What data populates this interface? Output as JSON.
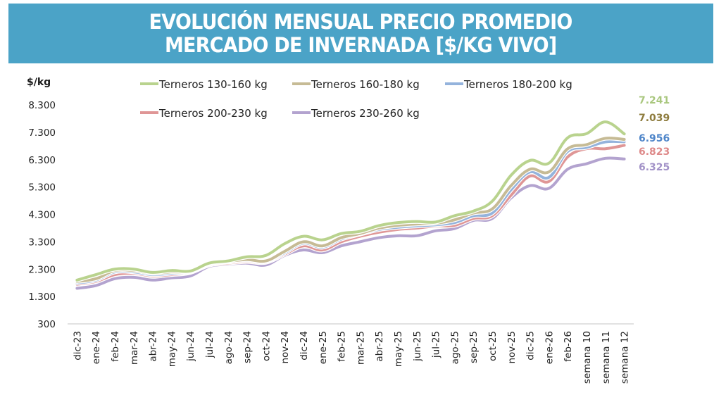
{
  "header": {
    "title_line1": "EVOLUCIÓN MENSUAL PRECIO PROMEDIO",
    "title_line2": "MERCADO DE INVERNADA [$/KG VIVO]",
    "background_color": "#4ba3c7"
  },
  "chart_data": {
    "type": "line",
    "title": "EVOLUCIÓN MENSUAL PRECIO PROMEDIO MERCADO DE INVERNADA [$/KG VIVO]",
    "xlabel": "",
    "ylabel": "$/kg",
    "ylim": [
      300,
      8300
    ],
    "yticks": [
      300,
      1300,
      2300,
      3300,
      4300,
      5300,
      6300,
      7300,
      8300
    ],
    "ytick_labels": [
      "300",
      "1.300",
      "2.300",
      "3.300",
      "4.300",
      "5.300",
      "6.300",
      "7.300",
      "8.300"
    ],
    "grid": false,
    "legend_position": "top",
    "categories": [
      "dic-23",
      "ene-24",
      "feb-24",
      "mar-24",
      "abr-24",
      "may-24",
      "jun-24",
      "jul-24",
      "ago-24",
      "sep-24",
      "oct-24",
      "nov-24",
      "dic-24",
      "ene-25",
      "feb-25",
      "mar-25",
      "abr-25",
      "may-25",
      "jun-25",
      "jul-25",
      "ago-25",
      "sep-25",
      "oct-25",
      "nov-25",
      "dic-25",
      "ene-26",
      "feb-26",
      "semana 10",
      "semana 11",
      "semana 12"
    ],
    "series": [
      {
        "name": "Terneros 130-160 kg",
        "color": "#b9d38e",
        "label_color": "#a9c77e",
        "end_label": "7.241",
        "values": [
          1900,
          2100,
          2300,
          2300,
          2180,
          2250,
          2230,
          2520,
          2600,
          2750,
          2800,
          3230,
          3500,
          3370,
          3600,
          3680,
          3890,
          4000,
          4040,
          4020,
          4250,
          4420,
          4780,
          5730,
          6270,
          6170,
          7100,
          7250,
          7680,
          7241
        ]
      },
      {
        "name": "Terneros 160-180 kg",
        "color": "#c6bb95",
        "label_color": "#8e7c3e",
        "end_label": "7.039",
        "values": [
          1850,
          1950,
          2250,
          2250,
          2150,
          2200,
          2220,
          2500,
          2580,
          2650,
          2600,
          2950,
          3300,
          3150,
          3450,
          3600,
          3800,
          3900,
          3950,
          3980,
          4100,
          4350,
          4500,
          5350,
          5950,
          5850,
          6700,
          6850,
          7080,
          7039
        ]
      },
      {
        "name": "Terneros 180-200 kg",
        "color": "#94b3dc",
        "label_color": "#4f86c9",
        "end_label": "6.956",
        "values": [
          1800,
          1900,
          2200,
          2200,
          2100,
          2150,
          2200,
          2480,
          2560,
          2620,
          2580,
          2900,
          3250,
          3100,
          3400,
          3580,
          3750,
          3830,
          3880,
          3920,
          4000,
          4250,
          4350,
          5200,
          5850,
          5650,
          6600,
          6750,
          6950,
          6956
        ]
      },
      {
        "name": "Terneros 200-230 kg",
        "color": "#df9696",
        "label_color": "#de8a8a",
        "end_label": "6.823",
        "values": [
          1750,
          1850,
          2100,
          2150,
          2050,
          2100,
          2180,
          2450,
          2520,
          2580,
          2550,
          2850,
          3150,
          3000,
          3300,
          3500,
          3650,
          3750,
          3800,
          3880,
          3900,
          4150,
          4250,
          5000,
          5700,
          5500,
          6400,
          6700,
          6700,
          6823
        ]
      },
      {
        "name": "Terneros 230-260 kg",
        "color": "#b3a3cf",
        "label_color": "#a393c8",
        "end_label": "6.325",
        "values": [
          1600,
          1700,
          1950,
          2000,
          1900,
          1980,
          2050,
          2400,
          2480,
          2520,
          2450,
          2800,
          3000,
          2900,
          3150,
          3300,
          3450,
          3520,
          3520,
          3700,
          3780,
          4080,
          4150,
          4900,
          5350,
          5250,
          5950,
          6150,
          6350,
          6325
        ]
      }
    ]
  }
}
